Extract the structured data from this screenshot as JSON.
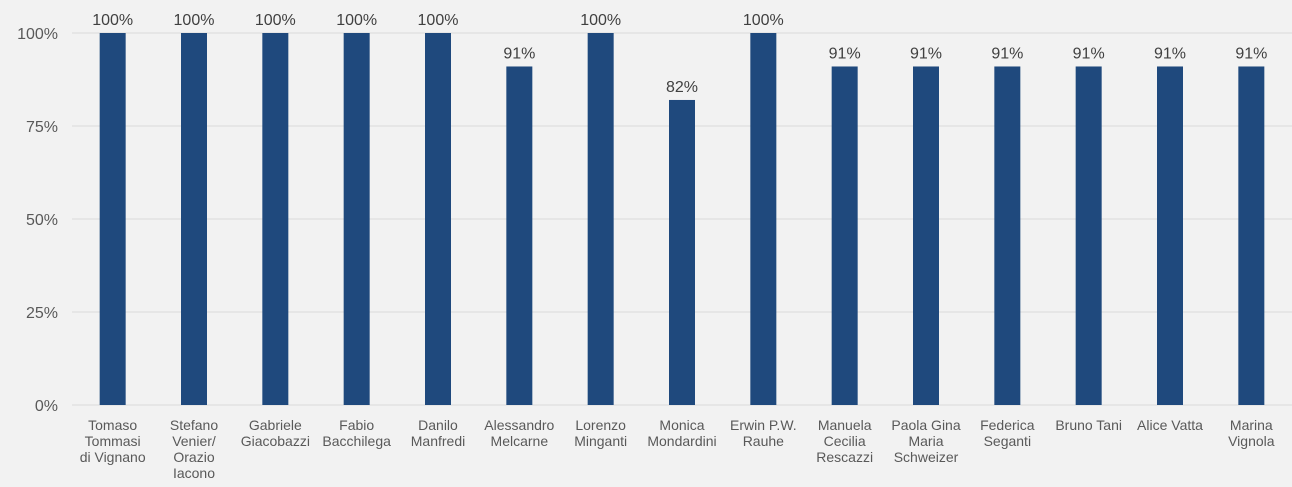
{
  "chart_data": {
    "type": "bar",
    "categories": [
      [
        "Tomaso",
        "Tommasi",
        "di Vignano"
      ],
      [
        "Stefano",
        "Venier/",
        "Orazio",
        "Iacono"
      ],
      [
        "Gabriele",
        "Giacobazzi"
      ],
      [
        "Fabio",
        "Bacchilega"
      ],
      [
        "Danilo",
        "Manfredi"
      ],
      [
        "Alessandro",
        "Melcarne"
      ],
      [
        "Lorenzo",
        "Minganti"
      ],
      [
        "Monica",
        "Mondardini"
      ],
      [
        "Erwin P.W.",
        "Rauhe"
      ],
      [
        "Manuela",
        "Cecilia",
        "Rescazzi"
      ],
      [
        "Paola Gina",
        "Maria",
        "Schweizer"
      ],
      [
        "Federica",
        "Seganti"
      ],
      [
        "Bruno Tani"
      ],
      [
        "Alice Vatta"
      ],
      [
        "Marina",
        "Vignola"
      ]
    ],
    "values": [
      100,
      100,
      100,
      100,
      100,
      91,
      100,
      82,
      100,
      91,
      91,
      91,
      91,
      91,
      91
    ],
    "data_labels": [
      "100%",
      "100%",
      "100%",
      "100%",
      "100%",
      "91%",
      "100%",
      "82%",
      "100%",
      "91%",
      "91%",
      "91%",
      "91%",
      "91%",
      "91%"
    ],
    "yticks": [
      0,
      25,
      50,
      75,
      100
    ],
    "ytick_labels": [
      "0%",
      "25%",
      "50%",
      "75%",
      "100%"
    ],
    "ylim": [
      0,
      100
    ],
    "grid": true,
    "bar_color": "#1f497d",
    "title": "",
    "xlabel": "",
    "ylabel": ""
  }
}
